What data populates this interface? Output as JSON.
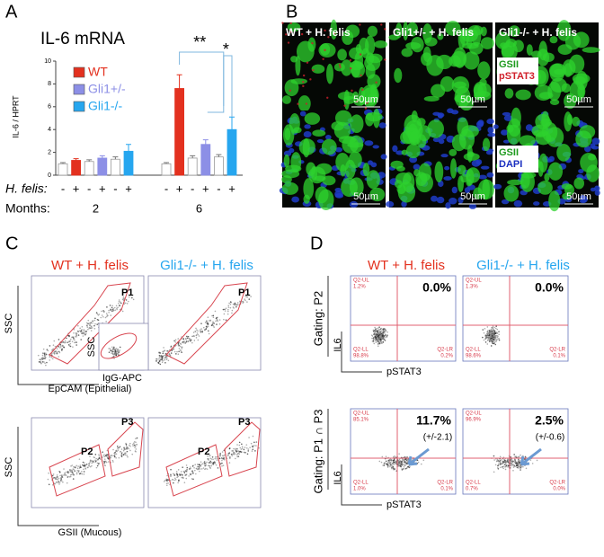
{
  "chart_data": {
    "type": "bar",
    "title": "IL-6 mRNA",
    "y_label": "IL-6 / HPRT",
    "ylim": [
      0,
      10
    ],
    "yticks": [
      0,
      2,
      4,
      6,
      8,
      10
    ],
    "series": [
      {
        "name": "WT",
        "color": "#e3311f",
        "values": [
          1.0,
          1.3,
          1.0,
          7.6
        ],
        "errors": [
          0.1,
          0.15,
          0.1,
          1.2
        ]
      },
      {
        "name": "Gli1+/-",
        "color": "#8c8fe6",
        "values": [
          1.2,
          1.5,
          1.5,
          2.7
        ],
        "errors": [
          0.15,
          0.2,
          0.2,
          0.4
        ]
      },
      {
        "name": "Gli1-/-",
        "color": "#26a6ef",
        "values": [
          1.4,
          2.1,
          1.6,
          4.0
        ],
        "errors": [
          0.2,
          0.6,
          0.2,
          1.1
        ]
      }
    ],
    "treatment_label": "H. felis:",
    "treatment": [
      "-",
      "+",
      "-",
      "+",
      "-",
      "+",
      "-",
      "+",
      "-",
      "+",
      "-",
      "+"
    ],
    "group_label": "Months:",
    "groups": [
      "2",
      "6"
    ],
    "significance": [
      "**",
      "*"
    ]
  },
  "panel_labels": [
    "A",
    "B",
    "C",
    "D"
  ],
  "panel_b": {
    "titles": [
      "WT + H. felis",
      "Gli1+/- + H. felis",
      "Gli1-/- + H. felis"
    ],
    "scale_bars": [
      "50µm",
      "50µm",
      "50µm",
      "50µm",
      "50µm",
      "50µm"
    ],
    "stains": [
      [
        "GSII",
        "pSTAT3"
      ],
      [
        "GSII",
        "DAPI"
      ]
    ]
  },
  "panel_c": {
    "titles": [
      "WT + H. felis",
      "Gli1-/- + H. felis"
    ],
    "top": {
      "gates": [
        "P1",
        "P1"
      ],
      "y_label": "SSC",
      "x_label": "EpCAM (Epithelial)",
      "inset_y_label": "SSC",
      "inset_x_label": "IgG-APC"
    },
    "bottom": {
      "gates": [
        [
          "P2",
          "P3"
        ],
        [
          "P2",
          "P3"
        ]
      ],
      "y_label": "SSC",
      "x_label": "GSII (Mucous)"
    }
  },
  "panel_d": {
    "titles": [
      "WT + H. felis",
      "Gli1-/- + H. felis"
    ],
    "rows": [
      {
        "gating": "Gating: P2",
        "y_label": "IL6",
        "x_label": "pSTAT3",
        "plots": [
          {
            "percent": "0.0%",
            "ul": "Q2-UL",
            "ul_value": "1.2%",
            "ll": "Q2-LL",
            "ll_value": "98.8%",
            "lr": "Q2-LR",
            "lr_value": "0.2%"
          },
          {
            "percent": "0.0%",
            "ul": "Q2-UL",
            "ul_value": "1.3%",
            "ll": "Q2-LL",
            "ll_value": "98.6%",
            "lr": "Q2-LR",
            "lr_value": "0.1%"
          }
        ]
      },
      {
        "gating": "Gating: P1 ∩ P3",
        "y_label": "IL6",
        "x_label": "pSTAT3",
        "plots": [
          {
            "percent": "11.7%",
            "sd": "(+/-2.1)",
            "ul": "Q2-UL",
            "ul_value": "85.1%",
            "ll": "Q2-LL",
            "ll_value": "1.0%",
            "lr": "Q2-LR",
            "lr_value": "0.1%"
          },
          {
            "percent": "2.5%",
            "sd": "(+/-0.6)",
            "ul": "Q2-UL",
            "ul_value": "96.9%",
            "ll": "Q2-LL",
            "ll_value": "0.7%",
            "lr": "Q2-LR",
            "lr_value": "0.0%"
          }
        ]
      }
    ]
  }
}
